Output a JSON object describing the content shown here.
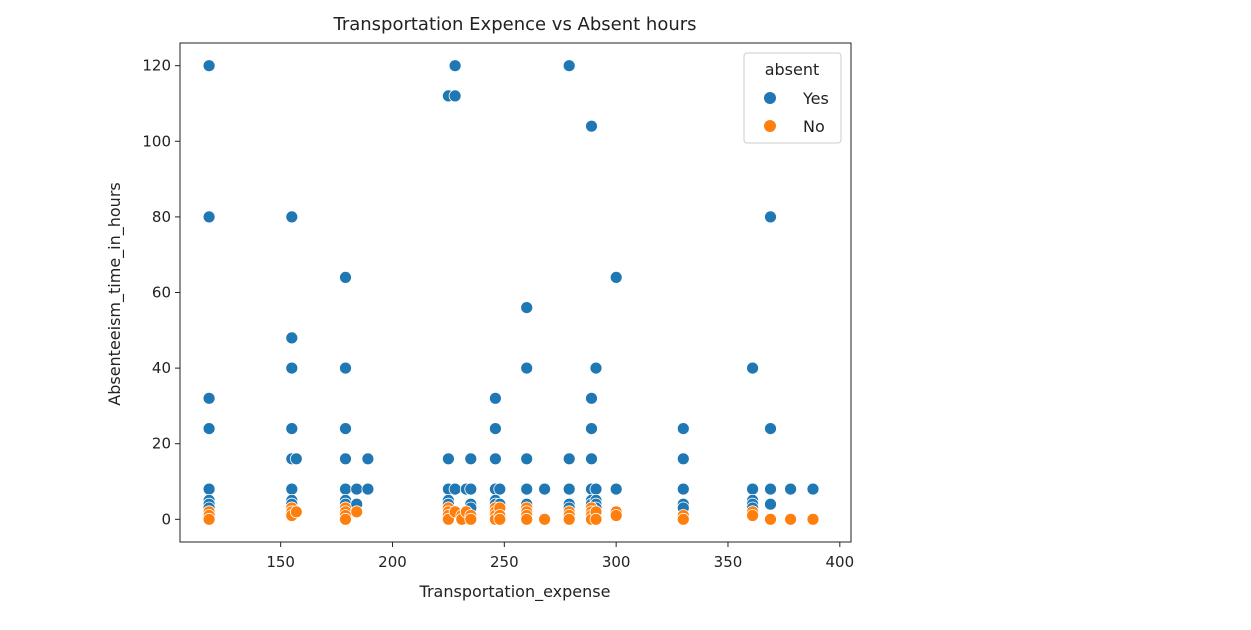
{
  "chart_data": {
    "type": "scatter",
    "title": "Transportation Expence vs Absent hours",
    "xlabel": "Transportation_expense",
    "ylabel": "Absenteeism_time_in_hours",
    "xlim": [
      105,
      405
    ],
    "ylim": [
      -6,
      126
    ],
    "xticks": [
      150,
      200,
      250,
      300,
      350,
      400
    ],
    "yticks": [
      0,
      20,
      40,
      60,
      80,
      100,
      120
    ],
    "grid": false,
    "legend": {
      "title": "absent",
      "placement": "top-right"
    },
    "series": [
      {
        "name": "Yes",
        "color": "#1f77b4",
        "points": [
          [
            118,
            120
          ],
          [
            118,
            80
          ],
          [
            118,
            32
          ],
          [
            118,
            24
          ],
          [
            118,
            8
          ],
          [
            118,
            5
          ],
          [
            118,
            4
          ],
          [
            118,
            3
          ],
          [
            155,
            80
          ],
          [
            155,
            48
          ],
          [
            155,
            40
          ],
          [
            155,
            24
          ],
          [
            155,
            16
          ],
          [
            155,
            8
          ],
          [
            155,
            5
          ],
          [
            155,
            4
          ],
          [
            155,
            3
          ],
          [
            157,
            16
          ],
          [
            179,
            64
          ],
          [
            179,
            40
          ],
          [
            179,
            24
          ],
          [
            179,
            16
          ],
          [
            179,
            8
          ],
          [
            179,
            5
          ],
          [
            179,
            4
          ],
          [
            179,
            3
          ],
          [
            184,
            8
          ],
          [
            184,
            4
          ],
          [
            189,
            16
          ],
          [
            189,
            8
          ],
          [
            225,
            112
          ],
          [
            225,
            16
          ],
          [
            225,
            8
          ],
          [
            225,
            5
          ],
          [
            225,
            4
          ],
          [
            225,
            3
          ],
          [
            228,
            120
          ],
          [
            228,
            112
          ],
          [
            228,
            8
          ],
          [
            233,
            8
          ],
          [
            235,
            16
          ],
          [
            235,
            8
          ],
          [
            235,
            4
          ],
          [
            235,
            3
          ],
          [
            246,
            32
          ],
          [
            246,
            24
          ],
          [
            246,
            16
          ],
          [
            246,
            8
          ],
          [
            246,
            5
          ],
          [
            246,
            4
          ],
          [
            246,
            3
          ],
          [
            248,
            8
          ],
          [
            248,
            4
          ],
          [
            248,
            3
          ],
          [
            260,
            56
          ],
          [
            260,
            40
          ],
          [
            260,
            16
          ],
          [
            260,
            8
          ],
          [
            260,
            4
          ],
          [
            260,
            3
          ],
          [
            268,
            8
          ],
          [
            279,
            120
          ],
          [
            279,
            16
          ],
          [
            279,
            8
          ],
          [
            279,
            4
          ],
          [
            279,
            3
          ],
          [
            289,
            104
          ],
          [
            289,
            32
          ],
          [
            289,
            24
          ],
          [
            289,
            16
          ],
          [
            289,
            8
          ],
          [
            289,
            5
          ],
          [
            289,
            4
          ],
          [
            289,
            3
          ],
          [
            291,
            40
          ],
          [
            291,
            8
          ],
          [
            291,
            5
          ],
          [
            291,
            4
          ],
          [
            291,
            3
          ],
          [
            300,
            64
          ],
          [
            300,
            8
          ],
          [
            330,
            24
          ],
          [
            330,
            16
          ],
          [
            330,
            8
          ],
          [
            330,
            4
          ],
          [
            330,
            3
          ],
          [
            361,
            40
          ],
          [
            361,
            8
          ],
          [
            361,
            5
          ],
          [
            361,
            4
          ],
          [
            361,
            3
          ],
          [
            369,
            80
          ],
          [
            369,
            24
          ],
          [
            369,
            8
          ],
          [
            369,
            4
          ],
          [
            378,
            8
          ],
          [
            388,
            8
          ]
        ]
      },
      {
        "name": "No",
        "color": "#ff7f0e",
        "points": [
          [
            118,
            2
          ],
          [
            118,
            1
          ],
          [
            118,
            0
          ],
          [
            155,
            3
          ],
          [
            155,
            2
          ],
          [
            155,
            1
          ],
          [
            157,
            2
          ],
          [
            179,
            3
          ],
          [
            179,
            2
          ],
          [
            179,
            1
          ],
          [
            179,
            0
          ],
          [
            184,
            2
          ],
          [
            225,
            3
          ],
          [
            225,
            2
          ],
          [
            225,
            1
          ],
          [
            225,
            0
          ],
          [
            228,
            2
          ],
          [
            231,
            1
          ],
          [
            231,
            0
          ],
          [
            233,
            2
          ],
          [
            235,
            1
          ],
          [
            235,
            0
          ],
          [
            246,
            3
          ],
          [
            246,
            2
          ],
          [
            246,
            1
          ],
          [
            246,
            0
          ],
          [
            248,
            3
          ],
          [
            248,
            1
          ],
          [
            248,
            0
          ],
          [
            260,
            3
          ],
          [
            260,
            2
          ],
          [
            260,
            1
          ],
          [
            260,
            0
          ],
          [
            268,
            0
          ],
          [
            279,
            2
          ],
          [
            279,
            1
          ],
          [
            279,
            0
          ],
          [
            289,
            3
          ],
          [
            289,
            2
          ],
          [
            289,
            1
          ],
          [
            289,
            0
          ],
          [
            291,
            2
          ],
          [
            291,
            0
          ],
          [
            300,
            2
          ],
          [
            300,
            1
          ],
          [
            330,
            1
          ],
          [
            330,
            0
          ],
          [
            361,
            2
          ],
          [
            361,
            1
          ],
          [
            369,
            0
          ],
          [
            378,
            0
          ],
          [
            388,
            0
          ]
        ]
      }
    ]
  }
}
